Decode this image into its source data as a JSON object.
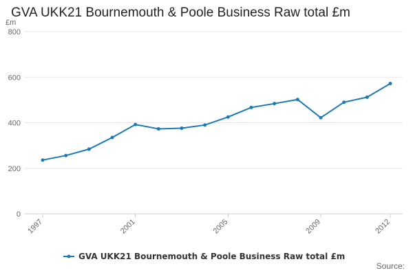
{
  "chart_data": {
    "type": "line",
    "title": "GVA UKK21 Bournemouth & Poole Business Raw total £m",
    "ylabel": "£m",
    "ylim": [
      0,
      800
    ],
    "yticks": [
      0,
      200,
      400,
      600,
      800
    ],
    "xlim": [
      1997,
      2012
    ],
    "xtick_labels": [
      "1997",
      "2001",
      "2005",
      "2009",
      "2012"
    ],
    "grid": "horizontal",
    "legend_position": "bottom",
    "color": "#1a7ab5",
    "series": [
      {
        "name": "GVA UKK21 Bournemouth & Poole Business Raw total £m",
        "x": [
          1997,
          1998,
          1999,
          2000,
          2001,
          2002,
          2003,
          2004,
          2005,
          2006,
          2007,
          2008,
          2009,
          2010,
          2011,
          2012
        ],
        "values": [
          236,
          256,
          284,
          335,
          392,
          373,
          376,
          390,
          425,
          467,
          484,
          502,
          422,
          490,
          512,
          572
        ]
      }
    ]
  },
  "source_label": "Source:"
}
